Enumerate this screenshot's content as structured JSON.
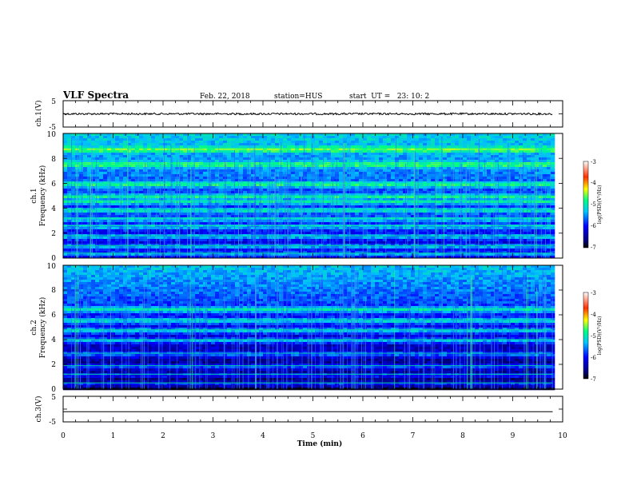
{
  "header": {
    "title": "VLF Spectra",
    "date": "Feb. 22, 2018",
    "station": "station=HUS",
    "start": "start  UT =   23: 10: 2"
  },
  "chart_data": [
    {
      "type": "line",
      "name": "ch1-voltage",
      "ylabel": "ch.1(V)",
      "ylim": [
        -5,
        5
      ],
      "yticks": [
        "5",
        "-5"
      ],
      "xlim": [
        0,
        10
      ],
      "series": [
        {
          "x": [
            0,
            9.8
          ],
          "y": [
            0,
            0
          ],
          "style": "noisy"
        }
      ]
    },
    {
      "type": "heatmap",
      "name": "ch1-spectrogram",
      "ylabel": "ch.1\nFrequency (kHz)",
      "ylim": [
        0,
        10
      ],
      "yticks": [
        "0",
        "2",
        "4",
        "6",
        "8",
        "10"
      ],
      "xlim": [
        0,
        10
      ],
      "data_end_min": 9.8,
      "bands_khz": [
        0.4,
        1.0,
        1.8,
        2.6,
        3.2,
        3.9,
        4.6,
        5.0,
        6.0,
        7.6,
        8.8
      ],
      "colorbar": {
        "label": "log(PSD)(V²/Hz)",
        "range": [
          -7,
          -3
        ],
        "ticks": [
          "-3",
          "-4",
          "-5",
          "-6",
          "-7"
        ]
      }
    },
    {
      "type": "heatmap",
      "name": "ch2-spectrogram",
      "ylabel": "ch.2\nFrequency (kHz)",
      "ylim": [
        0,
        10
      ],
      "yticks": [
        "0",
        "2",
        "4",
        "6",
        "8",
        "10"
      ],
      "xlim": [
        0,
        10
      ],
      "data_end_min": 9.8,
      "bands_khz": [
        0.5,
        1.2,
        1.9,
        2.9,
        4.0,
        4.8,
        5.6,
        6.5
      ],
      "colorbar": {
        "label": "log(PSD)(V²/Hz)",
        "range": [
          -7,
          -3
        ],
        "ticks": [
          "-3",
          "-4",
          "-5",
          "-6",
          "-7"
        ]
      }
    },
    {
      "type": "line",
      "name": "ch3-voltage",
      "ylabel": "ch.3(V)",
      "ylim": [
        -5,
        5
      ],
      "yticks": [
        "5",
        "-5"
      ],
      "xlim": [
        0,
        10
      ],
      "series": [
        {
          "x": [
            0,
            9.8
          ],
          "y": [
            -1,
            -1
          ],
          "style": "flat"
        }
      ]
    }
  ],
  "xaxis": {
    "label": "Time (min)",
    "ticks": [
      "0",
      "1",
      "2",
      "3",
      "4",
      "5",
      "6",
      "7",
      "8",
      "9",
      "10"
    ]
  }
}
